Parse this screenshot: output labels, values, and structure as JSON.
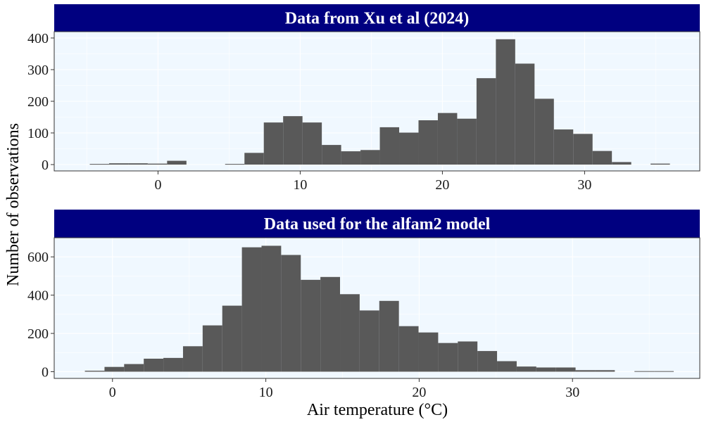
{
  "colors": {
    "strip_background": "#000080",
    "strip_text": "#ffffff",
    "panel_background": "#f0f8ff",
    "grid": "#ffffff",
    "bar_fill": "#595959",
    "panel_border": "#333333"
  },
  "axis_titles": {
    "x": "Air temperature (°C)",
    "y": "Number of observations"
  },
  "chart_data": [
    {
      "type": "bar",
      "title": "Data from Xu et al (2024)",
      "xlabel": "Air temperature (°C)",
      "ylabel": "Number of observations",
      "xlim": [
        -7.3,
        38.1
      ],
      "ylim": [
        -20,
        420
      ],
      "x_ticks": [
        0,
        10,
        20,
        30
      ],
      "y_ticks": [
        0,
        100,
        200,
        300,
        400
      ],
      "bin_width": 1.36,
      "bins_left": [
        -4.8,
        -3.44,
        -2.08,
        -0.72,
        0.64,
        2.0,
        3.36,
        4.72,
        6.08,
        7.44,
        8.8,
        10.16,
        11.52,
        12.88,
        14.24,
        15.6,
        16.96,
        18.32,
        19.68,
        21.04,
        22.4,
        23.76,
        25.12,
        26.48,
        27.84,
        29.2,
        30.56,
        31.92,
        33.28,
        34.64
      ],
      "counts": [
        2,
        4,
        4,
        3,
        12,
        0,
        0,
        2,
        37,
        133,
        153,
        133,
        62,
        42,
        46,
        118,
        101,
        140,
        163,
        145,
        273,
        396,
        319,
        208,
        111,
        97,
        43,
        8,
        0,
        3
      ],
      "grid": true,
      "legend": "none"
    },
    {
      "type": "bar",
      "title": "Data used for the alfam2 model",
      "xlabel": "Air temperature (°C)",
      "ylabel": "Number of observations",
      "xlim": [
        -3.8,
        38.3
      ],
      "ylim": [
        -35,
        700
      ],
      "x_ticks": [
        0,
        10,
        20,
        30
      ],
      "y_ticks": [
        0,
        200,
        400,
        600
      ],
      "bin_width": 1.28,
      "bins_left": [
        -1.8,
        -0.52,
        0.76,
        2.04,
        3.32,
        4.6,
        5.88,
        7.16,
        8.44,
        9.72,
        11.0,
        12.28,
        13.56,
        14.84,
        16.12,
        17.4,
        18.68,
        19.96,
        21.24,
        22.52,
        23.8,
        25.08,
        26.36,
        27.64,
        28.92,
        30.2,
        31.48,
        32.76,
        34.04,
        35.32
      ],
      "counts": [
        5,
        25,
        40,
        68,
        72,
        133,
        242,
        345,
        650,
        658,
        610,
        480,
        495,
        405,
        320,
        370,
        238,
        205,
        150,
        158,
        108,
        55,
        27,
        22,
        22,
        8,
        8,
        0,
        3,
        3
      ],
      "grid": true,
      "legend": "none"
    }
  ]
}
